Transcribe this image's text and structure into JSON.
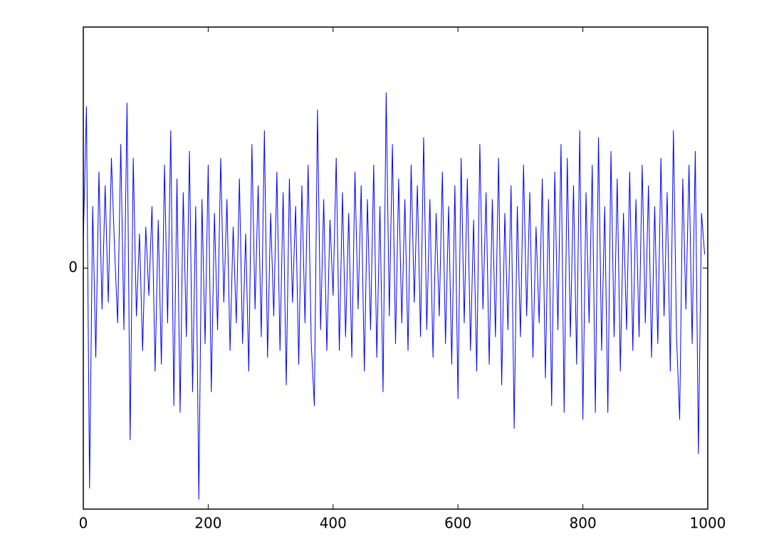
{
  "chart_data": {
    "type": "line",
    "color": "#0000ff",
    "xlim": [
      0,
      1000
    ],
    "xticks": [
      0,
      200,
      400,
      600,
      800,
      1000
    ],
    "ylim": [
      -3.5,
      3.5
    ],
    "yticks": [
      0
    ],
    "x": [
      0,
      5,
      10,
      15,
      20,
      25,
      30,
      35,
      40,
      45,
      50,
      55,
      60,
      65,
      70,
      75,
      80,
      85,
      90,
      95,
      100,
      105,
      110,
      115,
      120,
      125,
      130,
      135,
      140,
      145,
      150,
      155,
      160,
      165,
      170,
      175,
      180,
      185,
      190,
      195,
      200,
      205,
      210,
      215,
      220,
      225,
      230,
      235,
      240,
      245,
      250,
      255,
      260,
      265,
      270,
      275,
      280,
      285,
      290,
      295,
      300,
      305,
      310,
      315,
      320,
      325,
      330,
      335,
      340,
      345,
      350,
      355,
      360,
      365,
      370,
      375,
      380,
      385,
      390,
      395,
      400,
      405,
      410,
      415,
      420,
      425,
      430,
      435,
      440,
      445,
      450,
      455,
      460,
      465,
      470,
      475,
      480,
      485,
      490,
      495,
      500,
      505,
      510,
      515,
      520,
      525,
      530,
      535,
      540,
      545,
      550,
      555,
      560,
      565,
      570,
      575,
      580,
      585,
      590,
      595,
      600,
      605,
      610,
      615,
      620,
      625,
      630,
      635,
      640,
      645,
      650,
      655,
      660,
      665,
      670,
      675,
      680,
      685,
      690,
      695,
      700,
      705,
      710,
      715,
      720,
      725,
      730,
      735,
      740,
      745,
      750,
      755,
      760,
      765,
      770,
      775,
      780,
      785,
      790,
      795,
      800,
      805,
      810,
      815,
      820,
      825,
      830,
      835,
      840,
      845,
      850,
      855,
      860,
      865,
      870,
      875,
      880,
      885,
      890,
      895,
      900,
      905,
      910,
      915,
      920,
      925,
      930,
      935,
      940,
      945,
      950,
      955,
      960,
      965,
      970,
      975,
      980,
      985,
      990,
      995
    ],
    "values": [
      0.4,
      2.35,
      -3.2,
      0.9,
      -1.3,
      1.4,
      -0.6,
      1.2,
      -0.5,
      1.6,
      0.3,
      -0.8,
      1.8,
      -0.9,
      2.4,
      -2.5,
      1.6,
      -0.7,
      0.5,
      -1.2,
      0.6,
      -0.4,
      0.9,
      -1.5,
      0.7,
      -1.4,
      1.5,
      -0.8,
      2.0,
      -2.0,
      1.3,
      -2.1,
      1.1,
      -1.0,
      1.7,
      -1.8,
      0.9,
      -3.36,
      1.0,
      -1.1,
      1.5,
      -1.8,
      0.8,
      -0.9,
      1.6,
      -0.5,
      1.0,
      -1.2,
      0.6,
      -0.8,
      1.3,
      -1.1,
      0.5,
      -1.5,
      1.8,
      -0.6,
      1.2,
      -1.0,
      2.0,
      -1.3,
      0.8,
      -0.7,
      1.4,
      -1.2,
      1.1,
      -1.7,
      1.3,
      -0.5,
      0.9,
      -1.4,
      1.2,
      -0.8,
      1.5,
      -1.1,
      -2.0,
      2.3,
      -0.9,
      1.0,
      -1.2,
      0.7,
      -0.4,
      1.6,
      -1.2,
      1.1,
      -1.0,
      0.8,
      -1.3,
      1.4,
      -0.6,
      1.2,
      -1.5,
      1.0,
      -0.9,
      1.5,
      -1.3,
      0.9,
      -1.8,
      2.55,
      -0.7,
      1.8,
      -1.1,
      1.3,
      -0.8,
      1.0,
      -1.2,
      1.5,
      -0.5,
      1.2,
      -1.0,
      1.9,
      -0.9,
      1.0,
      -1.3,
      0.8,
      -0.7,
      1.4,
      -1.1,
      0.9,
      -1.4,
      1.2,
      -1.9,
      1.6,
      -0.8,
      1.3,
      -1.2,
      0.7,
      -1.5,
      1.8,
      -0.6,
      1.1,
      -1.4,
      1.0,
      -1.0,
      1.6,
      -1.7,
      0.8,
      -0.9,
      1.2,
      -2.33,
      0.9,
      -1.0,
      1.5,
      -0.7,
      1.1,
      -1.3,
      0.6,
      -0.8,
      1.3,
      -1.6,
      1.0,
      -2.0,
      1.4,
      -0.9,
      1.8,
      -2.1,
      1.6,
      -1.0,
      1.2,
      -1.4,
      2.0,
      -2.2,
      1.1,
      -0.8,
      1.5,
      -2.1,
      1.9,
      -1.2,
      0.9,
      -2.1,
      1.7,
      -1.0,
      1.3,
      -1.5,
      0.8,
      -0.9,
      1.4,
      -1.2,
      1.0,
      -1.0,
      1.5,
      -0.8,
      1.2,
      -1.3,
      0.9,
      -1.1,
      1.6,
      -0.7,
      1.1,
      -1.5,
      2.0,
      -1.0,
      -2.2,
      1.3,
      -0.6,
      1.5,
      -1.1,
      1.7,
      -2.7,
      0.8,
      0.2
    ]
  }
}
